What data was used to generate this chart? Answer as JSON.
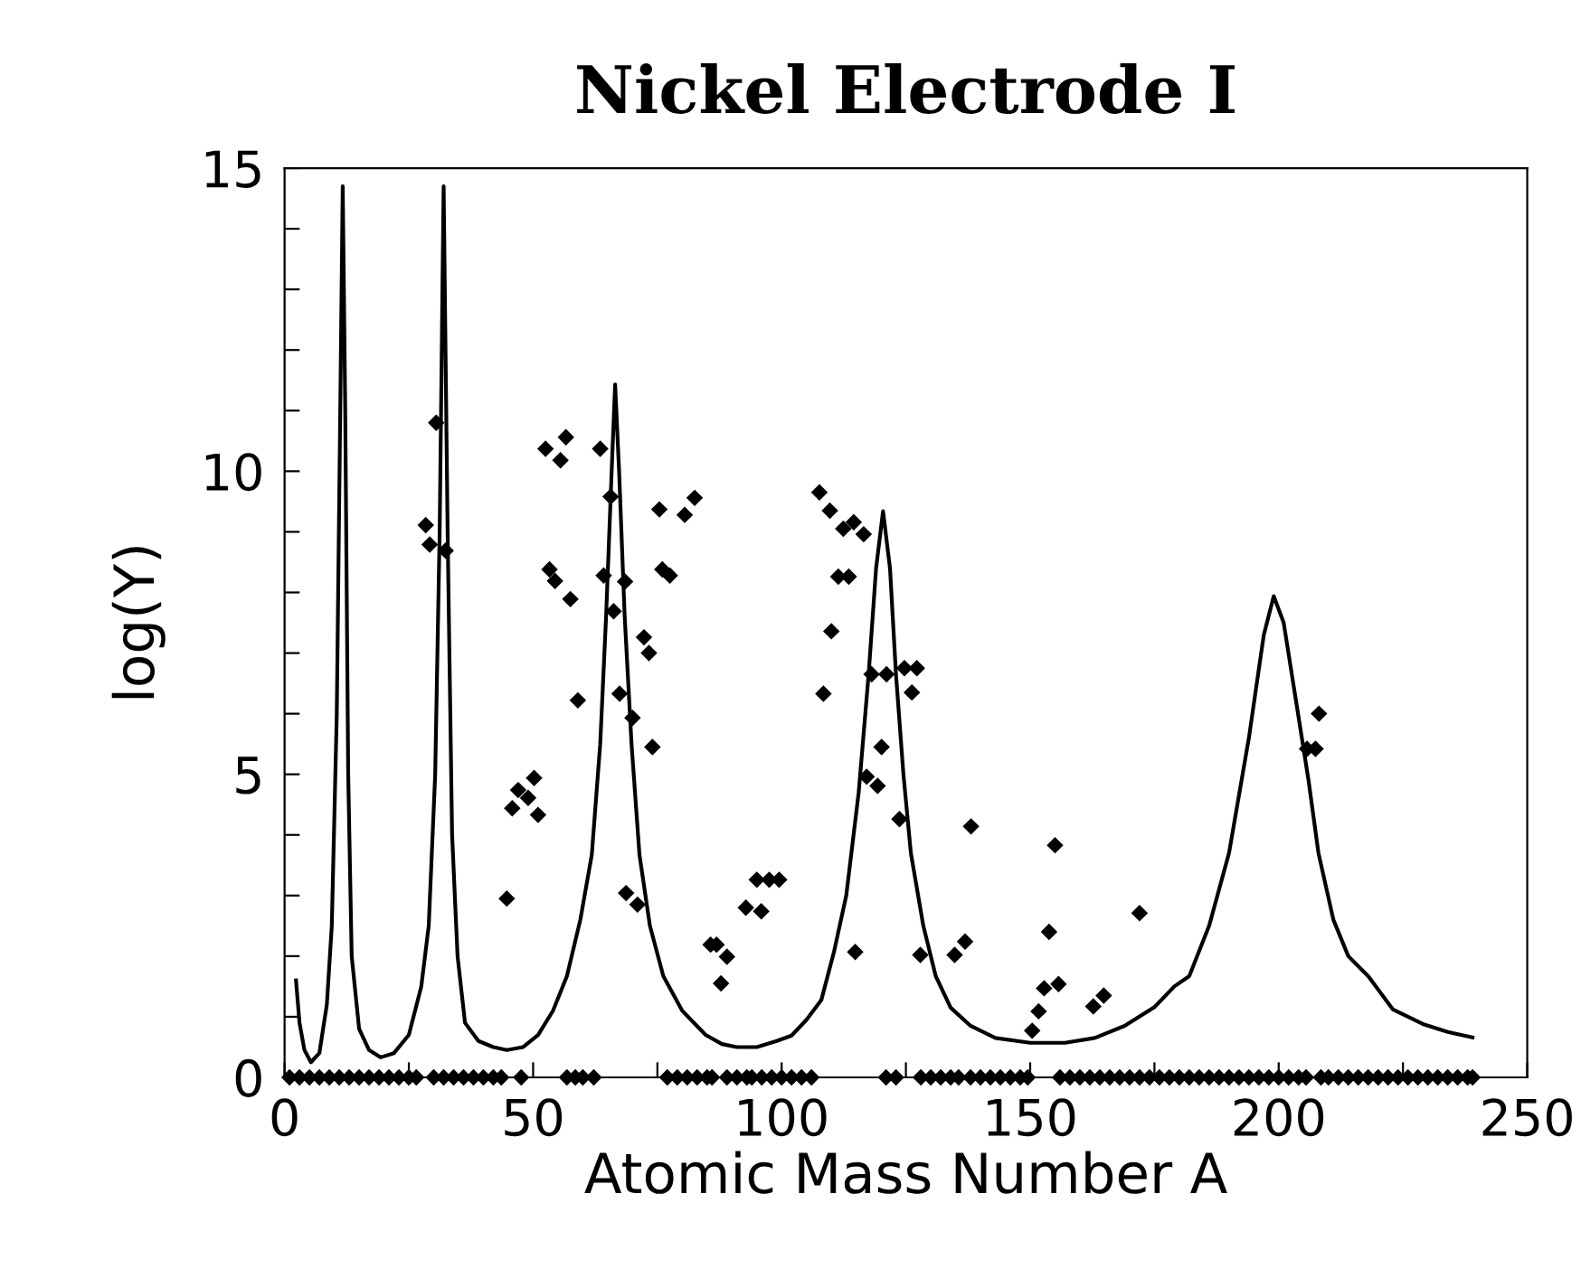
{
  "chart_data": {
    "type": "scatter",
    "title": "Nickel Electrode I",
    "xlabel": "Atomic Mass Number A",
    "ylabel": "log(Y)",
    "xlim": [
      0,
      250
    ],
    "ylim": [
      0,
      15
    ],
    "xticks": [
      0,
      {
        "value": 25,
        "label": null
      },
      50,
      {
        "value": 75,
        "label": null
      },
      100,
      {
        "value": 125,
        "label": null
      },
      150,
      {
        "value": 175,
        "label": null
      },
      200,
      {
        "value": 225,
        "label": null
      },
      250
    ],
    "yticks": [
      0,
      {
        "value": 1,
        "label": null
      },
      {
        "value": 2,
        "label": null
      },
      {
        "value": 3,
        "label": null
      },
      {
        "value": 4,
        "label": null
      },
      5,
      {
        "value": 6,
        "label": null
      },
      {
        "value": 7,
        "label": null
      },
      {
        "value": 8,
        "label": null
      },
      {
        "value": 9,
        "label": null
      },
      10,
      {
        "value": 11,
        "label": null
      },
      {
        "value": 12,
        "label": null
      },
      {
        "value": 13,
        "label": null
      },
      {
        "value": 14,
        "label": null
      },
      15
    ],
    "grid": false,
    "legend": false,
    "series": [
      {
        "type": "line",
        "color": "#000000",
        "marker": "none",
        "line_style": "solid",
        "x": [
          2.3,
          3,
          4,
          5.3,
          7,
          8.5,
          9.5,
          10.5,
          11.2,
          11.7,
          12.2,
          12.8,
          13.5,
          15,
          17,
          19.3,
          22,
          25,
          27.5,
          29,
          30.3,
          31.2,
          32,
          32.8,
          33.7,
          34.8,
          36.3,
          39,
          42,
          44.7,
          48,
          51,
          54,
          56.8,
          59.5,
          61.8,
          63.5,
          64.7,
          65.8,
          66.5,
          67.3,
          68.4,
          69.8,
          71.4,
          73.5,
          76.2,
          80,
          84.7,
          88,
          91,
          95,
          99,
          102,
          105,
          108,
          110.5,
          113,
          115.5,
          117.5,
          119,
          120.4,
          121.8,
          123,
          124.5,
          126,
          128.5,
          131,
          134,
          138,
          143,
          150,
          157,
          163,
          169,
          175,
          179,
          182,
          186,
          190,
          194,
          197,
          199,
          201,
          203.5,
          206,
          208,
          211,
          214,
          218,
          223,
          229,
          234,
          239
        ],
        "values": [
          1.6,
          0.9,
          0.45,
          0.25,
          0.4,
          1.2,
          2.5,
          6,
          11,
          14.7,
          11,
          5,
          2,
          0.8,
          0.45,
          0.33,
          0.4,
          0.7,
          1.5,
          2.5,
          5,
          9,
          14.7,
          9,
          4,
          2,
          0.9,
          0.6,
          0.5,
          0.45,
          0.5,
          0.7,
          1.1,
          1.67,
          2.6,
          3.67,
          5.5,
          7.64,
          10,
          11.43,
          10,
          7.64,
          5.5,
          3.67,
          2.5,
          1.67,
          1.1,
          0.7,
          0.55,
          0.5,
          0.5,
          0.6,
          0.69,
          0.95,
          1.28,
          2.06,
          3,
          4.7,
          6.65,
          8.4,
          9.34,
          8.4,
          6.65,
          5,
          3.7,
          2.5,
          1.67,
          1.15,
          0.85,
          0.65,
          0.57,
          0.57,
          0.65,
          0.85,
          1.16,
          1.5,
          1.67,
          2.5,
          3.7,
          5.6,
          7.3,
          7.94,
          7.5,
          6.2,
          4.9,
          3.7,
          2.6,
          2,
          1.67,
          1.12,
          0.88,
          0.75,
          0.66
        ]
      },
      {
        "color": "#000000",
        "marker": "diamond",
        "x": [
          28.4,
          29.2,
          30.5,
          32.4,
          52.5,
          55.5,
          56.6,
          63.5,
          65.6,
          75.4,
          80.5,
          82.5,
          53.3,
          54.4,
          57.5,
          64.2,
          68.5,
          66.2,
          76,
          77.5,
          72.3,
          107.6,
          109.7,
          112.4,
          114.5,
          116.5,
          111.4,
          113.5,
          110,
          67.4,
          70,
          73.3,
          74,
          59,
          45.8,
          47,
          49,
          50.2,
          51,
          44.7,
          68.7,
          71,
          85.7,
          86.9,
          89,
          87.8,
          92.8,
          95.9,
          95,
          97.5,
          99.5,
          108.4,
          114.8,
          117.1,
          119.3,
          120.1,
          118.1,
          121.1,
          123.7,
          124.7,
          127.2,
          126.2,
          127.9,
          134.8,
          136.9,
          138.1,
          155,
          153.8,
          152.8,
          155.7,
          151.7,
          150.4,
          162.7,
          164.8,
          172,
          208.1,
          205.7,
          207.4
        ],
        "values": [
          9.11,
          8.79,
          10.8,
          8.69,
          10.37,
          10.18,
          10.56,
          10.37,
          9.58,
          9.37,
          9.28,
          9.56,
          8.38,
          8.19,
          7.89,
          8.28,
          8.18,
          7.69,
          8.38,
          8.28,
          7.26,
          9.65,
          9.35,
          9.05,
          9.16,
          8.96,
          8.26,
          8.26,
          7.36,
          6.33,
          5.93,
          7,
          5.45,
          6.22,
          4.44,
          4.74,
          4.61,
          4.94,
          4.33,
          2.95,
          3.04,
          2.85,
          2.19,
          2.19,
          1.99,
          1.55,
          2.8,
          2.74,
          3.26,
          3.26,
          3.26,
          6.33,
          2.07,
          4.96,
          4.81,
          5.45,
          6.65,
          6.65,
          4.26,
          6.75,
          6.75,
          6.35,
          2.02,
          2.02,
          2.24,
          4.14,
          3.83,
          2.4,
          1.47,
          1.54,
          1.09,
          0.77,
          1.17,
          1.35,
          2.71,
          6,
          5.42,
          5.42
        ]
      },
      {
        "color": "#000000",
        "marker": "diamond",
        "x": [
          1,
          3,
          5,
          7,
          9,
          11,
          13,
          15,
          17,
          19,
          21,
          23,
          25,
          26.5,
          30,
          32,
          34,
          36,
          38,
          40,
          42,
          43.6,
          47.6,
          56.8,
          58.5,
          60,
          62.2,
          77,
          79,
          81,
          83,
          85,
          86,
          89,
          91,
          93,
          94,
          96,
          98,
          100,
          102,
          104,
          106,
          121,
          123,
          128,
          130,
          132,
          134,
          135.6,
          138,
          140,
          142,
          144,
          146,
          148,
          149.5,
          156,
          158,
          160,
          162,
          164,
          166,
          168,
          170,
          172,
          174,
          176,
          178,
          180,
          182,
          184,
          186,
          188,
          190,
          192,
          194,
          196,
          198,
          200,
          202,
          204,
          205.5,
          208.5,
          210,
          212,
          214,
          216,
          218,
          220,
          222,
          224,
          226,
          228,
          230,
          232,
          234,
          236,
          238,
          239
        ],
        "values": [
          0,
          0,
          0,
          0,
          0,
          0,
          0,
          0,
          0,
          0,
          0,
          0,
          0,
          0,
          0,
          0,
          0,
          0,
          0,
          0,
          0,
          0,
          0,
          0,
          0,
          0,
          0,
          0,
          0,
          0,
          0,
          0,
          0,
          0,
          0,
          0,
          0,
          0,
          0,
          0,
          0,
          0,
          0,
          0,
          0,
          0,
          0,
          0,
          0,
          0,
          0,
          0,
          0,
          0,
          0,
          0,
          0,
          0,
          0,
          0,
          0,
          0,
          0,
          0,
          0,
          0,
          0,
          0,
          0,
          0,
          0,
          0,
          0,
          0,
          0,
          0,
          0,
          0,
          0,
          0,
          0,
          0,
          0,
          0,
          0,
          0,
          0,
          0,
          0,
          0,
          0,
          0,
          0,
          0,
          0,
          0,
          0,
          0,
          0,
          0
        ]
      }
    ]
  }
}
